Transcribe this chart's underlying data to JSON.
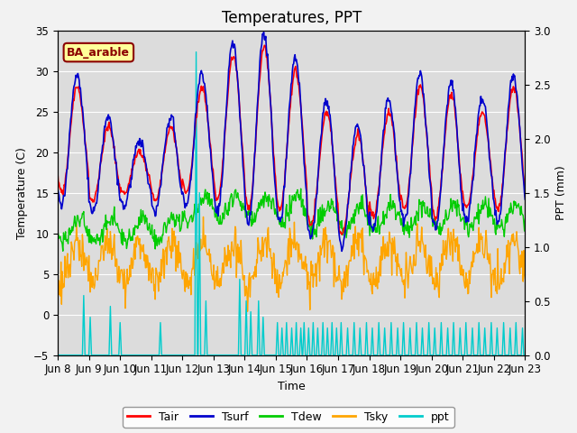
{
  "title": "Temperatures, PPT",
  "xlabel": "Time",
  "ylabel_left": "Temperature (C)",
  "ylabel_right": "PPT (mm)",
  "ylim_left": [
    -5,
    35
  ],
  "ylim_right": [
    0.0,
    3.0
  ],
  "x_tick_labels": [
    "Jun 8",
    "Jun 9",
    "Jun 10",
    "Jun 11",
    "Jun 12",
    "Jun 13",
    "Jun 14",
    "Jun 15",
    "Jun 16",
    "Jun 17",
    "Jun 18",
    "Jun 19",
    "Jun 20",
    "Jun 21",
    "Jun 22",
    "Jun 23"
  ],
  "annotation_text": "BA_arable",
  "annotation_color": "#8B0000",
  "annotation_bg": "#FFFF99",
  "annotation_border": "#8B0000",
  "colors": {
    "Tair": "#FF0000",
    "Tsurf": "#0000CC",
    "Tdew": "#00CC00",
    "Tsky": "#FFA500",
    "ppt": "#00CCCC"
  },
  "bg_color": "#DCDCDC",
  "grid_color": "#FFFFFF",
  "title_fontsize": 12,
  "label_fontsize": 9,
  "tick_fontsize": 8.5,
  "annotation_fontsize": 9,
  "legend_fontsize": 9
}
